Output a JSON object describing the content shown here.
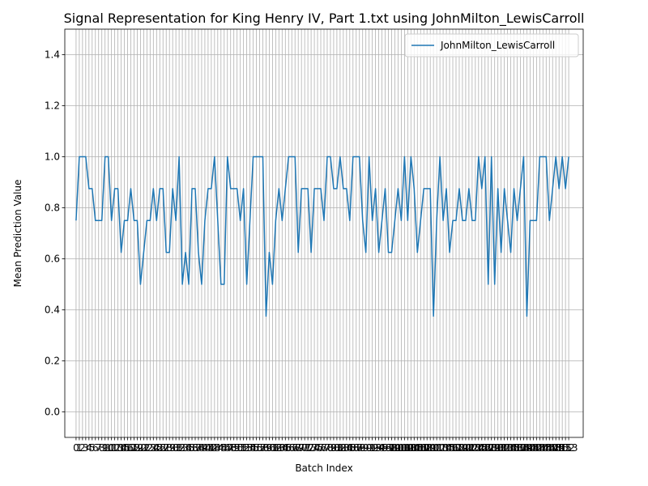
{
  "chart_data": {
    "type": "line",
    "title": "Signal Representation for King Henry IV, Part 1.txt using JohnMilton_LewisCarroll",
    "xlabel": "Batch Index",
    "ylabel": "Mean Prediction Value",
    "xlim": [
      -3.5,
      157.5
    ],
    "ylim": [
      -0.1,
      1.5
    ],
    "yticks": [
      0.0,
      0.2,
      0.4,
      0.6,
      0.8,
      1.0,
      1.2,
      1.4
    ],
    "xticks_every": 1,
    "grid": true,
    "legend_position": "top-right",
    "series": [
      {
        "name": "JohnMilton_LewisCarroll",
        "color": "#1f77b4",
        "x_start": 0,
        "values": [
          0.75,
          1.0,
          1.0,
          1.0,
          0.875,
          0.875,
          0.75,
          0.75,
          0.75,
          1.0,
          1.0,
          0.75,
          0.875,
          0.875,
          0.625,
          0.75,
          0.75,
          0.875,
          0.75,
          0.75,
          0.5,
          0.625,
          0.75,
          0.75,
          0.875,
          0.75,
          0.875,
          0.875,
          0.625,
          0.625,
          0.875,
          0.75,
          1.0,
          0.5,
          0.625,
          0.5,
          0.875,
          0.875,
          0.625,
          0.5,
          0.75,
          0.875,
          0.875,
          1.0,
          0.75,
          0.5,
          0.5,
          1.0,
          0.875,
          0.875,
          0.875,
          0.75,
          0.875,
          0.5,
          0.75,
          1.0,
          1.0,
          1.0,
          1.0,
          0.375,
          0.625,
          0.5,
          0.75,
          0.875,
          0.75,
          0.875,
          1.0,
          1.0,
          1.0,
          0.625,
          0.875,
          0.875,
          0.875,
          0.625,
          0.875,
          0.875,
          0.875,
          0.75,
          1.0,
          1.0,
          0.875,
          0.875,
          1.0,
          0.875,
          0.875,
          0.75,
          1.0,
          1.0,
          1.0,
          0.75,
          0.625,
          1.0,
          0.75,
          0.875,
          0.625,
          0.75,
          0.875,
          0.625,
          0.625,
          0.75,
          0.875,
          0.75,
          1.0,
          0.75,
          1.0,
          0.875,
          0.625,
          0.75,
          0.875,
          0.875,
          0.875,
          0.375,
          0.75,
          1.0,
          0.75,
          0.875,
          0.625,
          0.75,
          0.75,
          0.875,
          0.75,
          0.75,
          0.875,
          0.75,
          0.75,
          1.0,
          0.875,
          1.0,
          0.5,
          1.0,
          0.5,
          0.875,
          0.625,
          0.875,
          0.75,
          0.625,
          0.875,
          0.75,
          0.875,
          1.0,
          0.375,
          0.75,
          0.75,
          0.75,
          1.0,
          1.0,
          1.0,
          0.75,
          0.875,
          1.0,
          0.875,
          1.0,
          0.875,
          1.0
        ]
      }
    ]
  }
}
